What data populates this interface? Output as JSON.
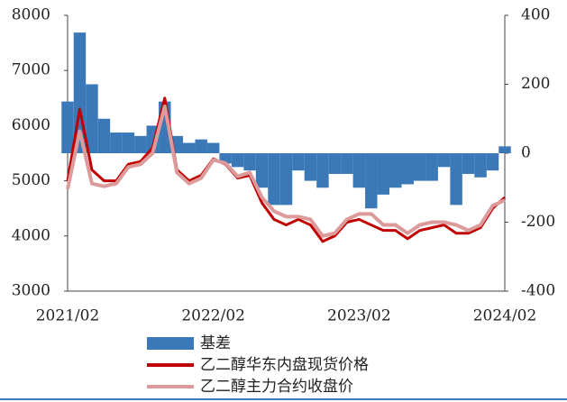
{
  "chart_data": {
    "type": "bar-line",
    "x": [
      "2021/02",
      "2021/03",
      "2021/04",
      "2021/05",
      "2021/06",
      "2021/07",
      "2021/08",
      "2021/09",
      "2021/10",
      "2021/11",
      "2021/12",
      "2022/01",
      "2022/02",
      "2022/03",
      "2022/04",
      "2022/05",
      "2022/06",
      "2022/07",
      "2022/08",
      "2022/09",
      "2022/10",
      "2022/11",
      "2022/12",
      "2023/01",
      "2023/02",
      "2023/03",
      "2023/04",
      "2023/05",
      "2023/06",
      "2023/07",
      "2023/08",
      "2023/09",
      "2023/10",
      "2023/11",
      "2023/12",
      "2024/01",
      "2024/02"
    ],
    "xticks": [
      "2021/02",
      "2022/02",
      "2023/02",
      "2024/02"
    ],
    "series": [
      {
        "name": "基差",
        "color": "#3a78b8",
        "axis": "y2",
        "kind": "bar",
        "values": [
          150,
          350,
          200,
          100,
          60,
          60,
          50,
          80,
          150,
          50,
          30,
          40,
          30,
          -30,
          -40,
          -50,
          -100,
          -150,
          -150,
          -50,
          -80,
          -100,
          -60,
          -60,
          -100,
          -160,
          -120,
          -100,
          -90,
          -80,
          -80,
          -40,
          -150,
          -60,
          -70,
          -50,
          20
        ]
      },
      {
        "name": "乙二醇华东内盘现货价格",
        "color": "#c00000",
        "kind": "line",
        "values": [
          5000,
          6300,
          5200,
          5000,
          5000,
          5300,
          5350,
          5600,
          6500,
          5200,
          5000,
          5100,
          5400,
          5300,
          5050,
          5100,
          4600,
          4300,
          4200,
          4300,
          4200,
          3900,
          4000,
          4250,
          4300,
          4200,
          4100,
          4100,
          3950,
          4100,
          4150,
          4200,
          4050,
          4050,
          4150,
          4500,
          4700
        ]
      },
      {
        "name": "乙二醇主力合约收盘价",
        "color": "#dc9a9a",
        "kind": "line",
        "values": [
          4850,
          5900,
          4950,
          4900,
          4950,
          5250,
          5300,
          5500,
          6350,
          5150,
          4950,
          5050,
          5380,
          5320,
          5080,
          5150,
          4700,
          4450,
          4350,
          4350,
          4300,
          4000,
          4050,
          4300,
          4400,
          4400,
          4200,
          4200,
          4050,
          4200,
          4250,
          4250,
          4200,
          4100,
          4200,
          4550,
          4650
        ]
      }
    ],
    "ylim": [
      3000,
      8000
    ],
    "yticks": [
      3000,
      4000,
      5000,
      6000,
      7000,
      8000
    ],
    "y2lim": [
      -400,
      400
    ],
    "y2ticks": [
      -400,
      -200,
      0,
      200,
      400
    ]
  }
}
